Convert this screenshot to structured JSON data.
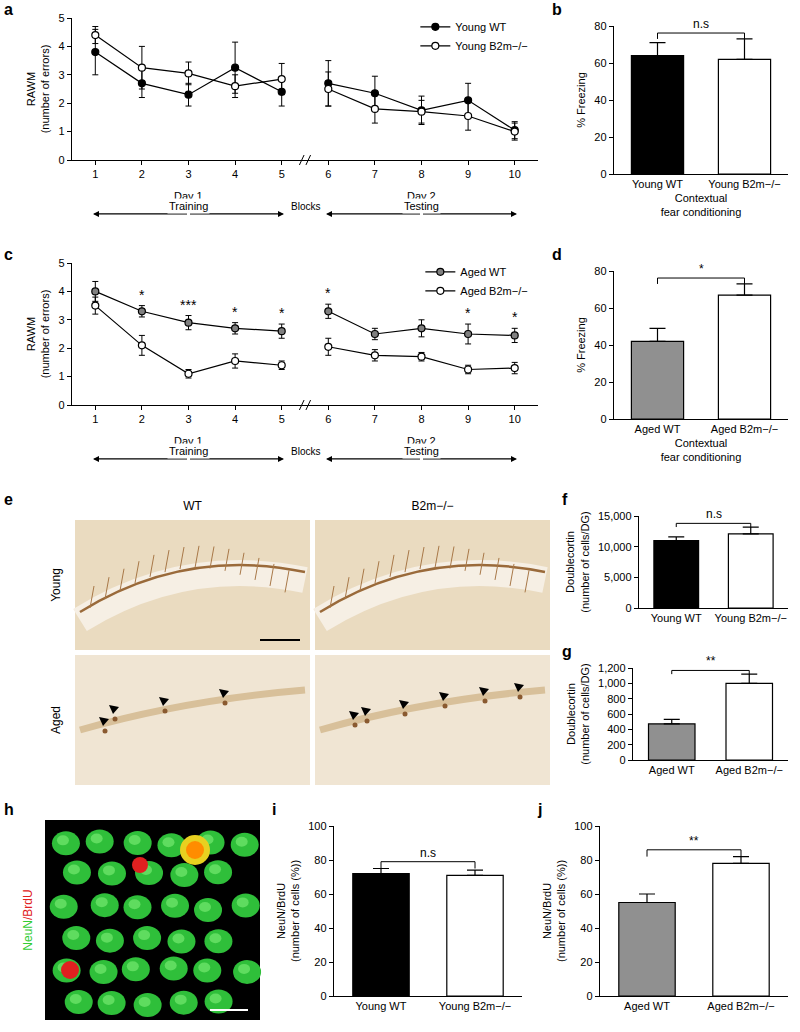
{
  "chart_data": [
    {
      "panel": "a",
      "type": "line",
      "y_label": "RAWM\n(number of errors)",
      "x_label": "Blocks",
      "x": [
        1,
        2,
        3,
        4,
        5,
        6,
        7,
        8,
        9,
        10
      ],
      "xlim": [
        0.5,
        10.5
      ],
      "xticks": [
        1,
        2,
        3,
        4,
        5,
        6,
        7,
        8,
        9,
        10
      ],
      "ylim": [
        0,
        5
      ],
      "yticks": [
        0,
        1,
        2,
        3,
        4,
        5
      ],
      "groups": [
        {
          "label": "Day 1",
          "sublabel": "Training",
          "from": 1,
          "to": 5
        },
        {
          "label": "Day 2",
          "sublabel": "Testing",
          "from": 6,
          "to": 10
        }
      ],
      "series": [
        {
          "name": "Young WT",
          "color": "#000000",
          "marker": "filled",
          "values": [
            3.8,
            2.7,
            2.3,
            3.25,
            2.4,
            2.7,
            2.35,
            1.75,
            2.1,
            1.05
          ],
          "errors": [
            0.8,
            0.5,
            0.4,
            0.9,
            0.5,
            0.8,
            0.6,
            0.5,
            0.6,
            0.3
          ]
        },
        {
          "name": "Young B2m−/−",
          "color": "#000000",
          "marker": "open",
          "values": [
            4.4,
            3.25,
            3.05,
            2.6,
            2.85,
            2.5,
            1.8,
            1.7,
            1.55,
            1.0
          ],
          "errors": [
            0.3,
            0.75,
            0.4,
            0.4,
            0.55,
            0.6,
            0.5,
            0.4,
            0.5,
            0.3
          ]
        }
      ],
      "legend": "top right",
      "annotations": []
    },
    {
      "panel": "b",
      "type": "bar",
      "categories": [
        "Young WT",
        "Young B2m−/−"
      ],
      "values": [
        64,
        62
      ],
      "errors": [
        7,
        11
      ],
      "colors": [
        "#000000",
        "#ffffff"
      ],
      "y_label": "% Freezing",
      "x_label": "Contextual\nfear conditioning",
      "ylim": [
        0,
        80
      ],
      "yticks": [
        0,
        20,
        40,
        60,
        80
      ],
      "significance": {
        "text": "n.s",
        "between": [
          "Young WT",
          "Young B2m−/−"
        ]
      }
    },
    {
      "panel": "c",
      "type": "line",
      "y_label": "RAWM\n(number of errors)",
      "x_label": "Blocks",
      "x": [
        1,
        2,
        3,
        4,
        5,
        6,
        7,
        8,
        9,
        10
      ],
      "xlim": [
        0.5,
        10.5
      ],
      "xticks": [
        1,
        2,
        3,
        4,
        5,
        6,
        7,
        8,
        9,
        10
      ],
      "ylim": [
        0,
        5
      ],
      "yticks": [
        0,
        1,
        2,
        3,
        4,
        5
      ],
      "groups": [
        {
          "label": "Day 1",
          "sublabel": "Training",
          "from": 1,
          "to": 5
        },
        {
          "label": "Day 2",
          "sublabel": "Testing",
          "from": 6,
          "to": 10
        }
      ],
      "series": [
        {
          "name": "Aged WT",
          "color": "#808080",
          "marker": "filled",
          "values": [
            4.0,
            3.3,
            2.9,
            2.7,
            2.6,
            3.3,
            2.5,
            2.7,
            2.5,
            2.45
          ],
          "errors": [
            0.35,
            0.2,
            0.25,
            0.2,
            0.25,
            0.25,
            0.2,
            0.3,
            0.35,
            0.25
          ]
        },
        {
          "name": "Aged B2m−/−",
          "color": "#000000",
          "marker": "open",
          "values": [
            3.5,
            2.1,
            1.1,
            1.55,
            1.4,
            2.05,
            1.75,
            1.7,
            1.25,
            1.3
          ],
          "errors": [
            0.3,
            0.35,
            0.15,
            0.25,
            0.15,
            0.3,
            0.2,
            0.15,
            0.15,
            0.2
          ]
        }
      ],
      "legend": "top right",
      "annotations": [
        {
          "x": 2,
          "text": "*"
        },
        {
          "x": 3,
          "text": "***"
        },
        {
          "x": 4,
          "text": "*"
        },
        {
          "x": 5,
          "text": "*"
        },
        {
          "x": 6,
          "text": "*"
        },
        {
          "x": 9,
          "text": "*"
        },
        {
          "x": 10,
          "text": "*"
        }
      ]
    },
    {
      "panel": "d",
      "type": "bar",
      "categories": [
        "Aged WT",
        "Aged B2m−/−"
      ],
      "values": [
        42,
        67
      ],
      "errors": [
        7,
        6
      ],
      "colors": [
        "#909090",
        "#ffffff"
      ],
      "y_label": "% Freezing",
      "x_label": "Contextual\nfear conditioning",
      "ylim": [
        0,
        80
      ],
      "yticks": [
        0,
        20,
        40,
        60,
        80
      ],
      "significance": {
        "text": "*",
        "between": [
          "Aged WT",
          "Aged B2m−/−"
        ]
      }
    },
    {
      "panel": "f",
      "type": "bar",
      "categories": [
        "Young WT",
        "Young B2m−/−"
      ],
      "values": [
        11000,
        12100
      ],
      "errors": [
        600,
        1100
      ],
      "colors": [
        "#000000",
        "#ffffff"
      ],
      "y_label": "Doublecortin\n(number of cells/DG)",
      "ylim": [
        0,
        15000
      ],
      "yticks": [
        0,
        {
          "value": 5000,
          "label": "5,000"
        },
        {
          "value": 10000,
          "label": "10,000"
        },
        {
          "value": 15000,
          "label": "15,000"
        }
      ],
      "significance": {
        "text": "n.s",
        "between": [
          "Young WT",
          "Young B2m−/−"
        ]
      }
    },
    {
      "panel": "g",
      "type": "bar",
      "categories": [
        "Aged WT",
        "Aged B2m−/−"
      ],
      "values": [
        470,
        1000
      ],
      "errors": [
        60,
        120
      ],
      "colors": [
        "#909090",
        "#ffffff"
      ],
      "y_label": "Doublecortin\n(number of cells/DG)",
      "ylim": [
        0,
        1200
      ],
      "yticks": [
        0,
        200,
        400,
        600,
        800,
        {
          "value": 1000,
          "label": "1,000"
        },
        {
          "value": 1200,
          "label": "1,200"
        }
      ],
      "significance": {
        "text": "**",
        "between": [
          "Aged WT",
          "Aged B2m−/−"
        ]
      }
    },
    {
      "panel": "i",
      "type": "bar",
      "categories": [
        "Young WT",
        "Young B2m−/−"
      ],
      "values": [
        72,
        71
      ],
      "errors": [
        3,
        3
      ],
      "colors": [
        "#000000",
        "#ffffff"
      ],
      "y_label": "NeuN/BrdU\n(number of cells (%))",
      "ylim": [
        0,
        100
      ],
      "yticks": [
        0,
        20,
        40,
        60,
        80,
        100
      ],
      "significance": {
        "text": "n.s",
        "between": [
          "Young WT",
          "Young B2m−/−"
        ]
      }
    },
    {
      "panel": "j",
      "type": "bar",
      "categories": [
        "Aged WT",
        "Aged B2m−/−"
      ],
      "values": [
        55,
        78
      ],
      "errors": [
        5,
        4
      ],
      "colors": [
        "#909090",
        "#ffffff"
      ],
      "y_label": "NeuN/BrdU\n(number of cells (%))",
      "ylim": [
        0,
        100
      ],
      "yticks": [
        0,
        20,
        40,
        60,
        80,
        100
      ],
      "significance": {
        "text": "**",
        "between": [
          "Aged WT",
          "Aged B2m−/−"
        ]
      }
    }
  ],
  "image_panels": {
    "e": {
      "panel": "e",
      "columns": [
        "WT",
        "B2m−/−"
      ],
      "rows": [
        "Young",
        "Aged"
      ]
    },
    "h": {
      "panel": "h",
      "label": [
        {
          "text": "NeuN",
          "color": "#33cc33"
        },
        {
          "text": "/BrdU",
          "color": "#e02020"
        }
      ]
    }
  }
}
